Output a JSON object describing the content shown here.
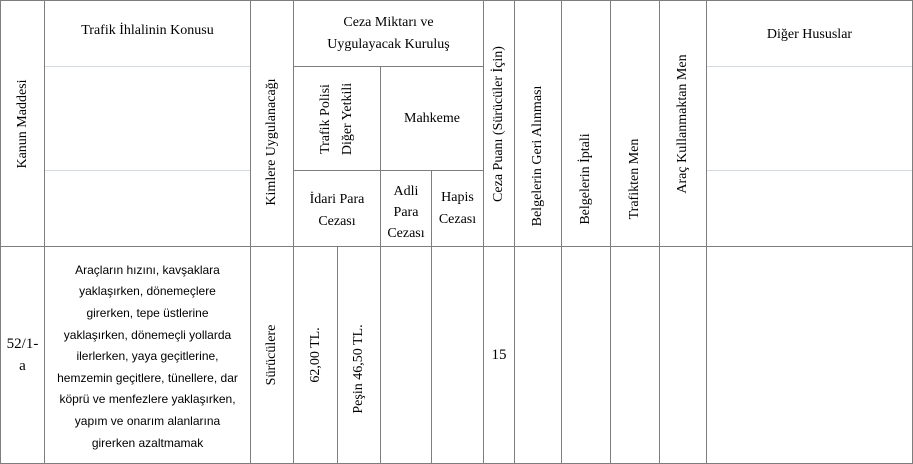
{
  "headers": {
    "kanun_maddesi": "Kanun Maddesi",
    "ihlal_konusu": "Trafik İhlalinin Konusu",
    "kimlere": "Kimlere Uygulanacağı",
    "ceza_group_line1": "Ceza Miktarı ve",
    "ceza_group_line2": "Uygulayacak Kuruluş",
    "trafik_polisi_line1": "Trafik Polisi",
    "trafik_polisi_line2": "Diğer Yetkili",
    "mahkeme": "Mahkeme",
    "idari_line1": "İdari Para",
    "idari_line2": "Cezası",
    "adli_line1": "Adli",
    "adli_line2": "Para",
    "adli_line3": "Cezası",
    "hapis_line1": "Hapis",
    "hapis_line2": "Cezası",
    "ceza_puani": "Ceza Puanı (Sürücüler İçin)",
    "belgelerin_geri": "Belgelerin Geri Alınması",
    "belgelerin_iptali": "Belgelerin İptali",
    "trafikten_men": "Trafikten Men",
    "arac_kullanmaktan": "Araç Kullanmaktan Men",
    "diger_hususlar": "Diğer Hususlar"
  },
  "row": {
    "madde_line1": "52/1-",
    "madde_line2": "a",
    "konu_lines": [
      "Araçların hızını, kavşaklara",
      "yaklaşırken, dönemeçlere",
      "girerken, tepe üstlerine",
      "yaklaşırken, dönemeçli yollarda",
      "ilerlerken, yaya geçitlerine,",
      "hemzemin geçitlere, tünellere, dar",
      "köprü ve menfezlere yaklaşırken,",
      "yapım ve onarım alanlarına",
      "girerken azaltmamak"
    ],
    "kimlere": "Sürücülere",
    "idari_ceza": "62,00 TL.",
    "pesin": "Peşin 46,50 TL.",
    "adli": "",
    "hapis": "",
    "ceza_puani": "15",
    "belgelerin_geri": "",
    "belgelerin_iptali": "",
    "trafikten_men": "",
    "arac_kullanmaktan": "",
    "diger_hususlar": ""
  }
}
